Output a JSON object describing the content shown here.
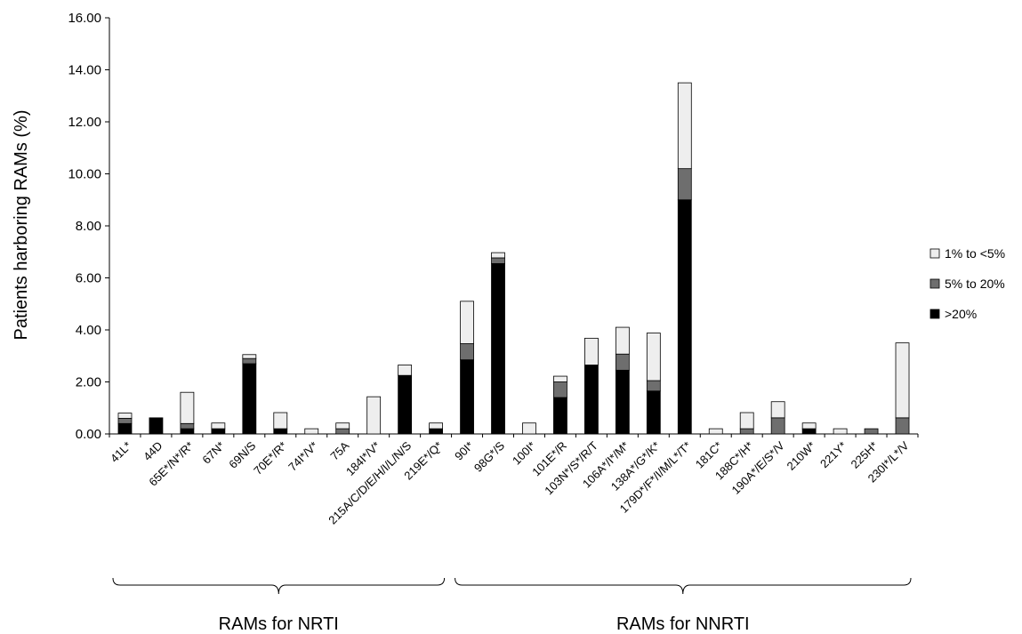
{
  "chart_data": {
    "type": "bar",
    "stacked": true,
    "ylabel": "Patients harboring RAMs (%)",
    "ylim": [
      0,
      16
    ],
    "yticks": [
      "0.00",
      "2.00",
      "4.00",
      "6.00",
      "8.00",
      "10.00",
      "12.00",
      "14.00",
      "16.00"
    ],
    "grid": false,
    "legend_position": "right",
    "categories": [
      "41L*",
      "44D",
      "65E*/N*/R*",
      "67N*",
      "69N/S",
      "70E*/R*",
      "74I*/V*",
      "75A",
      "184I*/V*",
      "215A/C/D/E/H/I/L/N/S",
      "219E*/Q*",
      "90I*",
      "98G*/S",
      "100I*",
      "101E*/R",
      "103N*/S*/R/T",
      "106A*/I*/M*",
      "138A*/G*/K*",
      "179D*/F*/I/M/L*/T*",
      "181C*",
      "188C*/H*",
      "190A*/E/S*/V",
      "210W*",
      "221Y*",
      "225H*",
      "230I*/L*/V"
    ],
    "series": [
      {
        "name": ">20%",
        "color": "#000000",
        "values": [
          0.4,
          0.62,
          0.2,
          0.2,
          2.7,
          0.2,
          0,
          0,
          0,
          2.25,
          0.2,
          2.85,
          6.55,
          0,
          1.4,
          2.65,
          2.45,
          1.65,
          9.0,
          0,
          0,
          0,
          0.2,
          0,
          0,
          0
        ]
      },
      {
        "name": "5% to 20%",
        "color": "#6e6e6e",
        "values": [
          0.2,
          0,
          0.2,
          0,
          0.2,
          0,
          0,
          0.2,
          0,
          0,
          0,
          0.62,
          0.22,
          0,
          0.6,
          0,
          0.62,
          0.4,
          1.2,
          0,
          0.2,
          0.62,
          0,
          0,
          0.2,
          0.62
        ]
      },
      {
        "name": "1% to <5%",
        "color": "#eeeeee",
        "values": [
          0.2,
          0,
          1.2,
          0.22,
          0.15,
          0.62,
          0.2,
          0.22,
          1.43,
          0.4,
          0.22,
          1.63,
          0.2,
          0.42,
          0.22,
          1.03,
          1.03,
          1.83,
          3.3,
          0.2,
          0.62,
          0.62,
          0.22,
          0.2,
          0,
          2.88
        ]
      }
    ],
    "groups": [
      {
        "label": "RAMs for NRTI",
        "first": 0,
        "last": 10
      },
      {
        "label": "RAMs for NNRTI",
        "first": 11,
        "last": 25
      }
    ]
  }
}
